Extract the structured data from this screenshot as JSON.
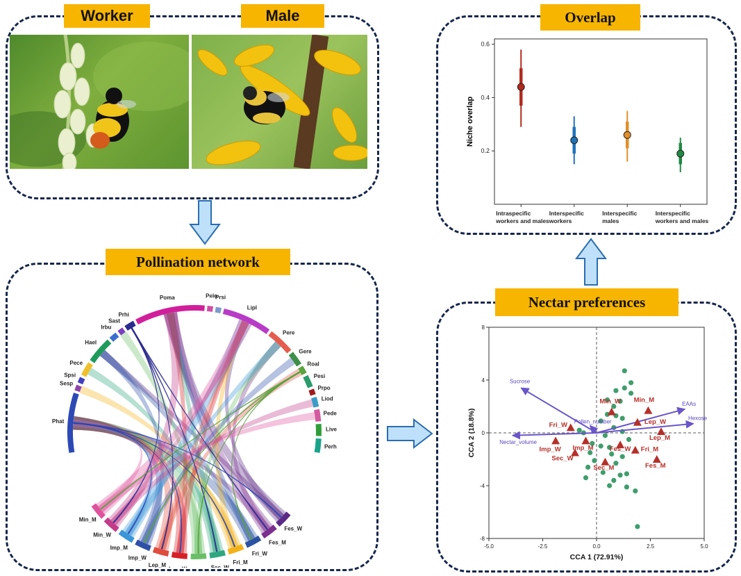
{
  "top": {
    "worker_label": "Worker",
    "male_label": "Male"
  },
  "network": {
    "title": "Pollination network",
    "plants": [
      "Phat",
      "Sesp",
      "Spsi",
      "Pece",
      "Hael",
      "Irbu",
      "Sast",
      "Prhi",
      "Poma",
      "Pelo",
      "Prsi",
      "Lipl",
      "Pere",
      "Gere",
      "Roal",
      "Pesi",
      "Prpo",
      "Liod",
      "Pede",
      "Live",
      "Perh"
    ],
    "bees": [
      "Fes_W",
      "Fes_M",
      "Fri_W",
      "Fri_M",
      "Sec_W",
      "Sec_M",
      "Lep_W",
      "Lep_M",
      "Imp_W",
      "Imp_M",
      "Min_W",
      "Min_M"
    ]
  },
  "overlap": {
    "title": "Overlap",
    "chart_data": {
      "type": "scatter",
      "title": "Overlap",
      "ylabel": "Niche overlap",
      "xlabel": "",
      "ylim": [
        0.0,
        0.62
      ],
      "yticks": [
        "0.2",
        "0.4",
        "0.6"
      ],
      "categories": [
        {
          "line1": "Intraspecific",
          "line2": "workers and males"
        },
        {
          "line1": "Interspecific",
          "line2": "workers"
        },
        {
          "line1": "Interspecific",
          "line2": "males"
        },
        {
          "line1": "Interspecific",
          "line2": "workers and males"
        }
      ],
      "points": [
        {
          "mean": 0.44,
          "inner": [
            0.37,
            0.51
          ],
          "outer": [
            0.29,
            0.58
          ],
          "color": "#b22a1e"
        },
        {
          "mean": 0.24,
          "inner": [
            0.19,
            0.29
          ],
          "outer": [
            0.15,
            0.33
          ],
          "color": "#1f73b7"
        },
        {
          "mean": 0.26,
          "inner": [
            0.21,
            0.31
          ],
          "outer": [
            0.16,
            0.35
          ],
          "color": "#e0902a"
        },
        {
          "mean": 0.19,
          "inner": [
            0.15,
            0.23
          ],
          "outer": [
            0.12,
            0.25
          ],
          "color": "#218a44"
        }
      ]
    }
  },
  "nectar": {
    "title": "Nectar preferences",
    "chart_data": {
      "type": "scatter",
      "xlabel": "CCA 1 (72.91%)",
      "ylabel": "CCA 2 (18.8%)",
      "xlim": [
        -5.0,
        5.0
      ],
      "ylim": [
        -8,
        8
      ],
      "xticks": [
        "-5.0",
        "-2.5",
        "0.0",
        "2.5",
        "5.0"
      ],
      "yticks": [
        "8",
        "4",
        "0",
        "-4",
        "-8"
      ],
      "arrows": [
        {
          "name": "Sucrose",
          "x": -3.5,
          "y": 3.4
        },
        {
          "name": "EAAs",
          "x": 4.1,
          "y": 1.8
        },
        {
          "name": "Hexose",
          "x": 4.5,
          "y": 0.7
        },
        {
          "name": "Pollen_number",
          "x": -0.3,
          "y": 0.55
        },
        {
          "name": "Nectar_volume",
          "x": -3.9,
          "y": -0.2
        }
      ],
      "triangles": [
        {
          "name": "Min_W",
          "x": 0.7,
          "y": 1.6
        },
        {
          "name": "Min_M",
          "x": 2.4,
          "y": 1.7
        },
        {
          "name": "Lep_W",
          "x": 1.9,
          "y": 0.8
        },
        {
          "name": "Lep_M",
          "x": 3.0,
          "y": 0.1
        },
        {
          "name": "Fri_W",
          "x": -1.2,
          "y": 0.4
        },
        {
          "name": "Imp_W",
          "x": -1.9,
          "y": -0.6
        },
        {
          "name": "Imp_M",
          "x": -0.5,
          "y": -0.6
        },
        {
          "name": "Fes_W",
          "x": 1.1,
          "y": -0.9
        },
        {
          "name": "Fri_M",
          "x": 1.8,
          "y": -1.3
        },
        {
          "name": "Sec_W",
          "x": -1.0,
          "y": -1.5
        },
        {
          "name": "Sec_M",
          "x": 0.4,
          "y": -2.2
        },
        {
          "name": "Fes_M",
          "x": 2.8,
          "y": -2.0
        }
      ],
      "points": [
        {
          "x": 1.3,
          "y": 4.7
        },
        {
          "x": 1.6,
          "y": 3.8
        },
        {
          "x": 1.3,
          "y": 3.4
        },
        {
          "x": 0.9,
          "y": 3.2
        },
        {
          "x": 1.6,
          "y": 3.0
        },
        {
          "x": 0.5,
          "y": 2.5
        },
        {
          "x": 1.1,
          "y": 2.4
        },
        {
          "x": 0.8,
          "y": 2.0
        },
        {
          "x": 0.5,
          "y": 1.4
        },
        {
          "x": 0.9,
          "y": 1.3
        },
        {
          "x": 1.2,
          "y": 1.1
        },
        {
          "x": 0.2,
          "y": 0.9
        },
        {
          "x": 0.8,
          "y": 0.4
        },
        {
          "x": 1.2,
          "y": 0.1
        },
        {
          "x": -0.8,
          "y": 0.2
        },
        {
          "x": -0.6,
          "y": 0.0
        },
        {
          "x": 0.4,
          "y": -0.2
        },
        {
          "x": 1.5,
          "y": -0.5
        },
        {
          "x": -0.2,
          "y": -0.8
        },
        {
          "x": 0.2,
          "y": -1.0
        },
        {
          "x": 0.6,
          "y": -1.1
        },
        {
          "x": -0.3,
          "y": -1.5
        },
        {
          "x": 0.7,
          "y": -1.6
        },
        {
          "x": 1.2,
          "y": -1.8
        },
        {
          "x": -0.1,
          "y": -2.1
        },
        {
          "x": 0.9,
          "y": -2.3
        },
        {
          "x": -0.4,
          "y": -2.6
        },
        {
          "x": 0.3,
          "y": -3.0
        },
        {
          "x": 1.1,
          "y": -3.2
        },
        {
          "x": -0.5,
          "y": -3.4
        },
        {
          "x": 0.8,
          "y": -3.6
        },
        {
          "x": 1.4,
          "y": -3.1
        },
        {
          "x": 0.6,
          "y": -4.0
        },
        {
          "x": 1.4,
          "y": -4.1
        },
        {
          "x": 1.8,
          "y": -4.4
        },
        {
          "x": 1.9,
          "y": -7.1
        }
      ]
    }
  }
}
